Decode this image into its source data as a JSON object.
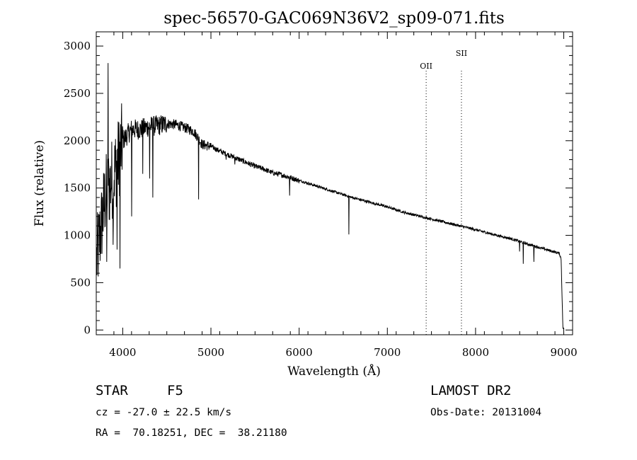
{
  "chart_data": {
    "type": "line",
    "title": "spec-56570-GAC069N36V2_sp09-071.fits",
    "xlabel": "Wavelength (Å)",
    "ylabel": "Flux (relative)",
    "xlim": [
      3700,
      9100
    ],
    "ylim": [
      -50,
      3150
    ],
    "xticks": [
      4000,
      5000,
      6000,
      7000,
      8000,
      9000
    ],
    "yticks": [
      0,
      500,
      1000,
      1500,
      2000,
      2500,
      3000
    ],
    "grid": false,
    "continuum": {
      "x": [
        3700,
        3800,
        3900,
        3950,
        4000,
        4100,
        4200,
        4300,
        4400,
        4500,
        4600,
        4700,
        4800,
        4850,
        4900,
        5000,
        5100,
        5200,
        5300,
        5400,
        5500,
        5600,
        5700,
        5800,
        5900,
        6000,
        6200,
        6400,
        6600,
        6800,
        7000,
        7200,
        7400,
        7600,
        7800,
        8000,
        8200,
        8400,
        8600,
        8800,
        8950,
        8970,
        8990
      ],
      "y": [
        700,
        1400,
        1650,
        1800,
        2000,
        2120,
        2120,
        2150,
        2160,
        2180,
        2170,
        2140,
        2100,
        2040,
        1960,
        1940,
        1890,
        1850,
        1810,
        1770,
        1730,
        1700,
        1660,
        1640,
        1610,
        1580,
        1520,
        1460,
        1400,
        1350,
        1300,
        1240,
        1195,
        1150,
        1105,
        1060,
        1010,
        965,
        905,
        850,
        810,
        750,
        20
      ]
    },
    "absorption_lines": [
      {
        "x": 3820,
        "y": 720
      },
      {
        "x": 3835,
        "y": 2820
      },
      {
        "x": 3890,
        "y": 900
      },
      {
        "x": 3935,
        "y": 850
      },
      {
        "x": 3970,
        "y": 650
      },
      {
        "x": 4102,
        "y": 1200
      },
      {
        "x": 4226,
        "y": 1650
      },
      {
        "x": 4305,
        "y": 1600
      },
      {
        "x": 4340,
        "y": 1400
      },
      {
        "x": 4861,
        "y": 1380
      },
      {
        "x": 5172,
        "y": 1800
      },
      {
        "x": 5270,
        "y": 1750
      },
      {
        "x": 5893,
        "y": 1420
      },
      {
        "x": 6563,
        "y": 1010
      },
      {
        "x": 8498,
        "y": 830
      },
      {
        "x": 8542,
        "y": 700
      },
      {
        "x": 8662,
        "y": 720
      }
    ],
    "spectral_lines": [
      {
        "label": "OII",
        "x": 7440
      },
      {
        "label": "SII",
        "x": 7840
      }
    ]
  },
  "info": {
    "object_class": "STAR",
    "subclass": "F5",
    "survey": "LAMOST DR2",
    "redshift": "cz = -27.0 ± 22.5 km/s",
    "obs_date": "Obs-Date: 20131004",
    "coords": "RA =  70.18251, DEC =  38.21180"
  }
}
